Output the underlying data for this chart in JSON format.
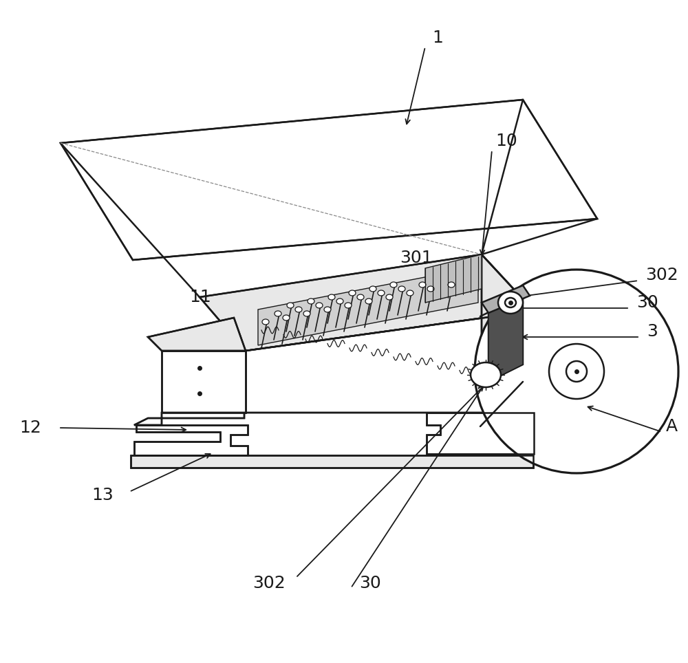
{
  "bg_color": "#ffffff",
  "line_color": "#1a1a1a",
  "fig_width": 10.0,
  "fig_height": 9.64,
  "arrow_lw": 1.3,
  "draw_lw": 1.8,
  "font_size": 18,
  "gray_fill": "#c8c8c8",
  "light_gray": "#e8e8e8",
  "mid_gray": "#b0b0b0"
}
